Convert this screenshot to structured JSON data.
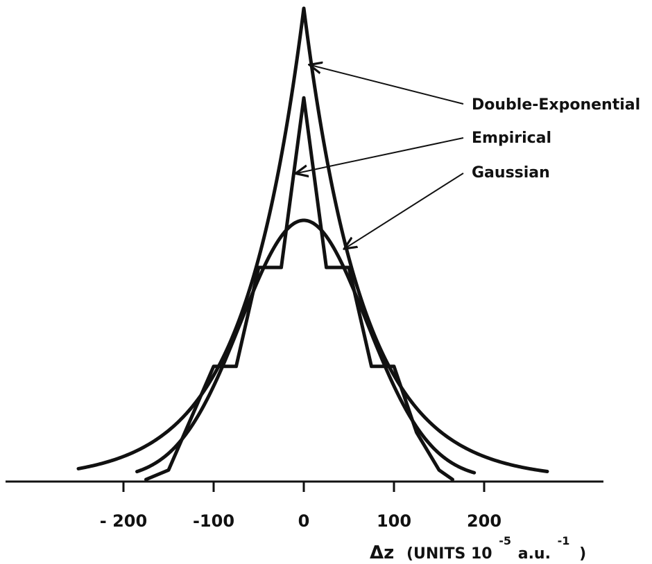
{
  "chart_data": {
    "type": "line",
    "x_ticks": [
      -200,
      -100,
      0,
      100,
      200
    ],
    "x_tick_labels": [
      "- 200",
      "-100",
      "0",
      "100",
      "200"
    ],
    "xlim": [
      -330,
      330
    ],
    "xlabel": {
      "prefix": "Δz",
      "text": "(UNITS 10",
      "exp1": "-5",
      "mid": "a.u.",
      "exp2": "-1",
      "suffix": ")"
    },
    "series": [
      {
        "name": "Double-Exponential",
        "x": [
          -250,
          -200,
          -150,
          -100,
          -50,
          -20,
          0,
          20,
          50,
          100,
          150,
          200,
          270
        ],
        "y": [
          0.01,
          0.04,
          0.1,
          0.22,
          0.47,
          0.74,
          1.0,
          0.74,
          0.47,
          0.22,
          0.1,
          0.04,
          0.01
        ]
      },
      {
        "name": "Empirical",
        "x": [
          -175,
          -150,
          -100,
          -75,
          -50,
          -25,
          0,
          25,
          50,
          75,
          100,
          125,
          150,
          165
        ],
        "y": [
          0.0,
          0.02,
          0.24,
          0.24,
          0.45,
          0.45,
          0.81,
          0.45,
          0.45,
          0.24,
          0.24,
          0.1,
          0.02,
          0.0
        ]
      },
      {
        "name": "Gaussian",
        "mu": 0,
        "sigma": 70,
        "peak": 0.55,
        "x_range": [
          -185,
          190
        ]
      }
    ],
    "annotations": [
      {
        "text": "Double-Exponential",
        "target_series": 0
      },
      {
        "text": "Empirical",
        "target_series": 1
      },
      {
        "text": "Gaussian",
        "target_series": 2
      }
    ],
    "grid": false
  }
}
